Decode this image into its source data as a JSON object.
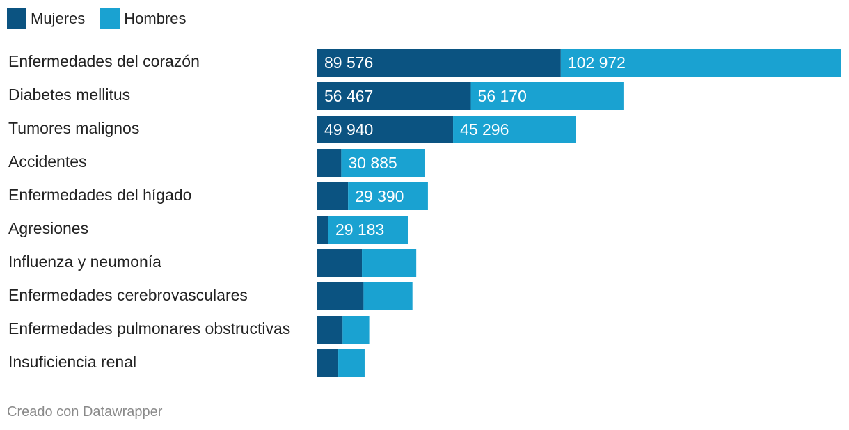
{
  "chart_data": {
    "type": "bar",
    "orientation": "horizontal",
    "stacked": true,
    "categories": [
      "Enfermedades del corazón",
      "Diabetes mellitus",
      "Tumores malignos",
      "Accidentes",
      "Enfermedades del hígado",
      "Agresiones",
      "Influenza y neumonía",
      "Enfermedades cerebrovasculares",
      "Enfermedades pulmonares obstructivas",
      "Insuficiencia renal"
    ],
    "series": [
      {
        "name": "Mujeres",
        "color": "#0b5381",
        "values": [
          89576,
          56467,
          49940,
          8800,
          11300,
          4100,
          16400,
          17000,
          9300,
          7700
        ],
        "labels": [
          "89 576",
          "56 467",
          "49 940",
          null,
          null,
          null,
          null,
          null,
          null,
          null
        ]
      },
      {
        "name": "Hombres",
        "color": "#1aa2d1",
        "values": [
          102972,
          56170,
          45296,
          30885,
          29390,
          29183,
          20000,
          18000,
          9800,
          9700
        ],
        "labels": [
          "102 972",
          "56 170",
          "45 296",
          "30 885",
          "29 390",
          "29 183",
          null,
          null,
          null,
          null
        ]
      }
    ],
    "xlim": [
      0,
      192548
    ],
    "legend_position": "top-left"
  },
  "legend": [
    {
      "label": "Mujeres",
      "color": "#0b5381"
    },
    {
      "label": "Hombres",
      "color": "#1aa2d1"
    }
  ],
  "footer": {
    "credit": "Creado con Datawrapper"
  }
}
